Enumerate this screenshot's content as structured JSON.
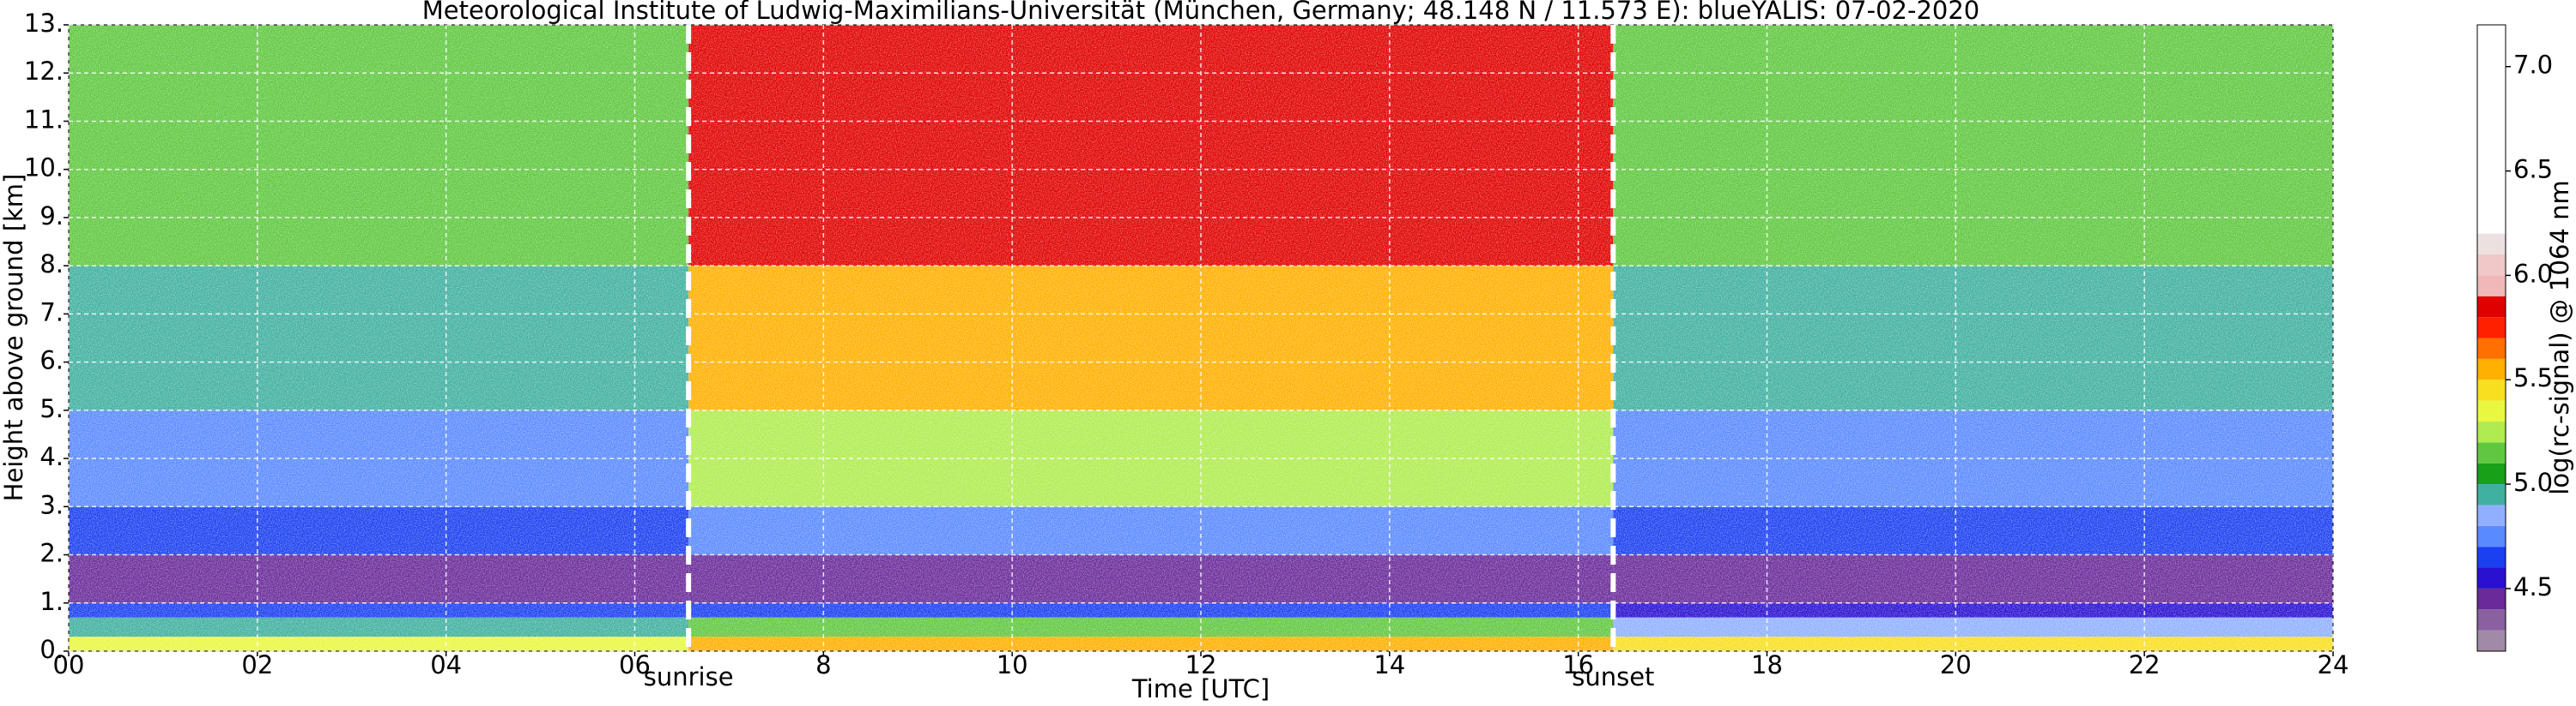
{
  "chart_data": {
    "type": "heatmap",
    "title": "Meteorological Institute of Ludwig-Maximilians-Universität (München, Germany; 48.148 N / 11.573 E):    blueYALIS: 07-02-2020",
    "x_label": "Time [UTC]",
    "y_label": "Height above ground [km]",
    "xlim": [
      0,
      24
    ],
    "xticks": [
      {
        "value": 0,
        "label": "00"
      },
      {
        "value": 2,
        "label": "02"
      },
      {
        "value": 4,
        "label": "04"
      },
      {
        "value": 6,
        "label": "06"
      },
      8,
      10,
      12,
      14,
      16,
      18,
      20,
      22,
      24
    ],
    "ylim": [
      0,
      13
    ],
    "yticks": [
      {
        "value": 0,
        "label": "0."
      },
      {
        "value": 1,
        "label": "1."
      },
      {
        "value": 2,
        "label": "2."
      },
      {
        "value": 3,
        "label": "3."
      },
      {
        "value": 4,
        "label": "4."
      },
      {
        "value": 5,
        "label": "5."
      },
      {
        "value": 6,
        "label": "6."
      },
      {
        "value": 7,
        "label": "7."
      },
      {
        "value": 8,
        "label": "8."
      },
      {
        "value": 9,
        "label": "9."
      },
      {
        "value": 10,
        "label": "10."
      },
      {
        "value": 11,
        "label": "11."
      },
      {
        "value": 12,
        "label": "12."
      },
      {
        "value": 13,
        "label": "13."
      }
    ],
    "grid": true,
    "x_bounds": [
      0,
      6.57,
      16.37,
      24
    ],
    "y_bounds": [
      0,
      0.3,
      0.7,
      1,
      2,
      3,
      5,
      8,
      13
    ],
    "values": [
      [
        5.3,
        4.9,
        4.6,
        4.4,
        4.65,
        4.75,
        4.95,
        5.15
      ],
      [
        5.55,
        5.1,
        4.6,
        4.45,
        4.7,
        5.2,
        5.5,
        5.8
      ],
      [
        5.4,
        4.8,
        4.5,
        4.4,
        4.6,
        4.75,
        4.95,
        5.15
      ]
    ],
    "annotations": [
      {
        "text": "sunrise",
        "x": 6.57
      },
      {
        "text": "sunset",
        "x": 16.37
      }
    ],
    "colorbar": {
      "label": "log(rc-signal) @ 1064 nm",
      "lim": [
        4.2,
        7.2
      ],
      "ticks": [
        4.5,
        {
          "value": 5,
          "label": "5.0"
        },
        5.5,
        {
          "value": 6,
          "label": "6.0"
        },
        6.5,
        {
          "value": 7,
          "label": "7.0"
        }
      ],
      "bounds": [
        4.2,
        4.3,
        4.4,
        4.5,
        4.6,
        4.7,
        4.8,
        4.9,
        5.0,
        5.1,
        5.2,
        5.3,
        5.4,
        5.5,
        5.6,
        5.7,
        5.8,
        5.9,
        6.0,
        6.1,
        6.2,
        7.2
      ],
      "colors": [
        "#a08aa8",
        "#8a60a0",
        "#6a2a9a",
        "#2a10d0",
        "#1a40f0",
        "#5a8aff",
        "#90b0ff",
        "#40b0a0",
        "#18a018",
        "#60c840",
        "#b0ec50",
        "#e8f840",
        "#f8e020",
        "#ffb000",
        "#ff7000",
        "#ff2000",
        "#e00000",
        "#f0b8b8",
        "#f0c8c8",
        "#ece0e0",
        "#ffffff"
      ]
    }
  }
}
